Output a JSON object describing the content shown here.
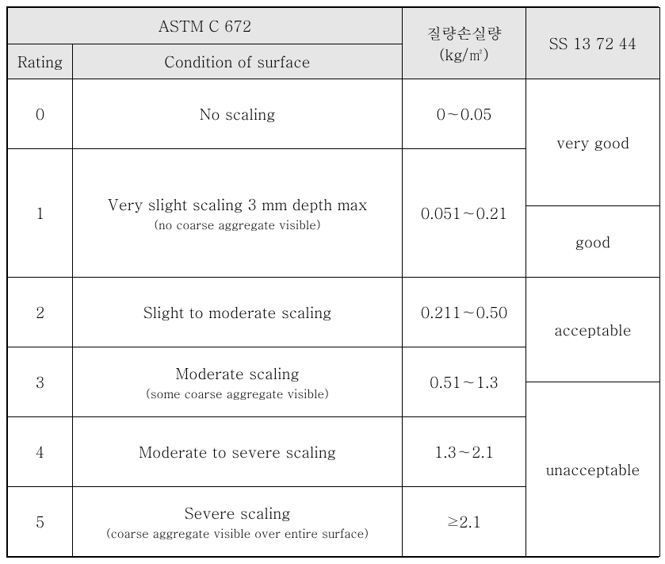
{
  "header": {
    "astm_title": "ASTM C 672",
    "rating_label": "Rating",
    "condition_label": "Condition of surface",
    "mass_loss_label": "질량손실량",
    "mass_loss_unit": "(kg/㎡)",
    "ss_label": "SS 13 72 44"
  },
  "rows": {
    "r0": {
      "rating": "0",
      "condition": "No scaling",
      "mass": "0∼0.05"
    },
    "r1": {
      "rating": "1",
      "condition_main": "Very slight scaling 3 mm depth max",
      "condition_sub": "(no coarse aggregate visible)",
      "mass": "0.051∼0.21"
    },
    "r2": {
      "rating": "2",
      "condition": "Slight to moderate scaling",
      "mass": "0.211∼0.50"
    },
    "r3": {
      "rating": "3",
      "condition_main": "Moderate scaling",
      "condition_sub": "(some coarse aggregate visible)",
      "mass": "0.51∼1.3"
    },
    "r4": {
      "rating": "4",
      "condition": "Moderate to severe scaling",
      "mass": "1.3∼2.1"
    },
    "r5": {
      "rating": "5",
      "condition_main": "Severe scaling",
      "condition_sub": "(coarse aggregate visible over entire surface)",
      "mass": "≥2.1"
    }
  },
  "ss_ratings": {
    "very_good": "very good",
    "good": "good",
    "acceptable": "acceptable",
    "unacceptable": "unacceptable"
  },
  "colors": {
    "header_bg": "#e6e6e6",
    "body_bg": "#ffffff",
    "border": "#000000"
  },
  "fontsizes": {
    "main": 19,
    "sub": 15
  }
}
